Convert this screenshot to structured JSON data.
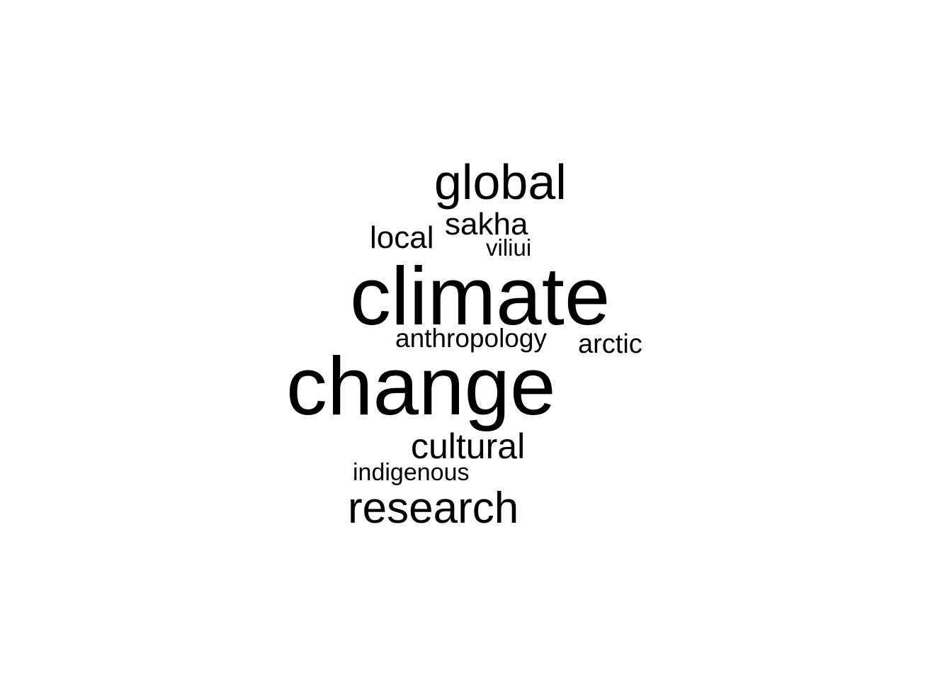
{
  "word_cloud": {
    "text_color": "#000000",
    "words": [
      {
        "text": "climate"
      },
      {
        "text": "change"
      },
      {
        "text": "global"
      },
      {
        "text": "research"
      },
      {
        "text": "cultural"
      },
      {
        "text": "sakha"
      },
      {
        "text": "local"
      },
      {
        "text": "arctic"
      },
      {
        "text": "anthropology"
      },
      {
        "text": "indigenous"
      },
      {
        "text": "viliui"
      }
    ]
  }
}
